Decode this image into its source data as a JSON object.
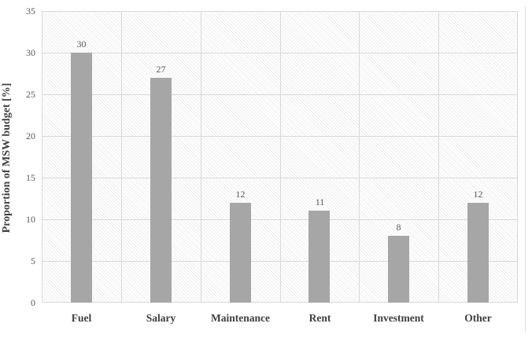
{
  "chart_data": {
    "type": "bar",
    "title": "",
    "xlabel": "",
    "ylabel": "Proportion of MSW budget [%]",
    "categories": [
      "Fuel",
      "Salary",
      "Maintenance",
      "Rent",
      "Investment",
      "Other"
    ],
    "values": [
      30,
      27,
      12,
      11,
      8,
      12
    ],
    "data_labels_shown": true,
    "ylim": [
      0,
      35
    ],
    "yticks": [
      0,
      5,
      10,
      15,
      20,
      25,
      30,
      35
    ],
    "legend": "none",
    "grid": "horizontal gridlines every 5 units plus vertical category separators",
    "plot_background": "light diagonal hatch pattern",
    "colors": {
      "bar_fill": "#a6a6a6",
      "gridline": "#d9d9d9",
      "tick_label_text": "#595959",
      "value_label_text": "#595959",
      "category_label_text": "#404040",
      "axis_title_text": "#404040",
      "figure_background": "#ffffff"
    }
  }
}
